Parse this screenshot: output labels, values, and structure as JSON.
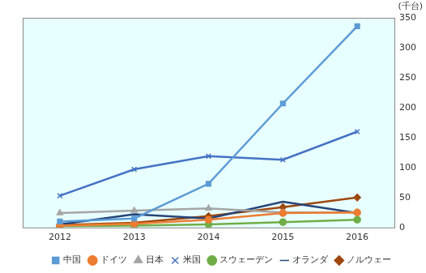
{
  "chart_data": {
    "type": "line",
    "y_label": "(千台)",
    "categories": [
      "2012",
      "2013",
      "2014",
      "2015",
      "2016"
    ],
    "series": [
      {
        "name": "中国",
        "color": "#5b9bd5",
        "marker": "square",
        "values": [
          10,
          15,
          73,
          207,
          336
        ]
      },
      {
        "name": "ドイツ",
        "color": "#ed7d31",
        "marker": "circle",
        "values": [
          3,
          6,
          13,
          24,
          25
        ]
      },
      {
        "name": "日本",
        "color": "#a5a5a5",
        "marker": "triangle",
        "values": [
          24,
          28,
          32,
          25,
          25
        ]
      },
      {
        "name": "米国",
        "color": "#4472c4",
        "marker": "x",
        "values": [
          53,
          97,
          119,
          113,
          160
        ]
      },
      {
        "name": "スウェーデン",
        "color": "#70ad47",
        "marker": "circle",
        "values": [
          2,
          3,
          5,
          9,
          13
        ]
      },
      {
        "name": "オランダ",
        "color": "#264478",
        "marker": "none",
        "values": [
          5,
          22,
          15,
          43,
          24
        ]
      },
      {
        "name": "ノルウェー",
        "color": "#9e480e",
        "marker": "diamond",
        "values": [
          4,
          8,
          19,
          34,
          50
        ]
      }
    ],
    "ylim": [
      0,
      350
    ],
    "yticks": [
      0,
      50,
      100,
      150,
      200,
      250,
      300,
      350
    ],
    "grid": false,
    "legend": "bottom"
  }
}
